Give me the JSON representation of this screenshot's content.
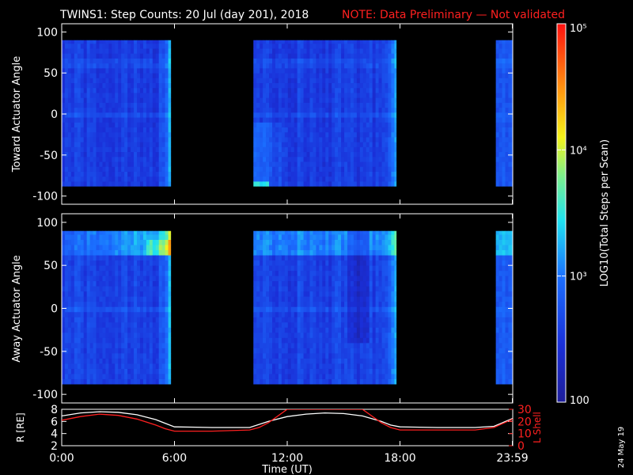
{
  "header": {
    "title": "TWINS1: Step Counts: 20 Jul (day 201), 2018",
    "note": "NOTE: Data Preliminary — Not validated"
  },
  "stamp": "24 May 19",
  "colors": {
    "background": "#000000",
    "note": "#ff2020",
    "frame": "#ffffff",
    "lshell": "#ff2020",
    "radius": "#ffffff"
  },
  "colorbar": {
    "label": "LOG10(Total Steps per Scan)",
    "scale": "log",
    "range": [
      100,
      100000
    ],
    "ticks": [
      {
        "text": "100",
        "value": 100
      },
      {
        "text": "10³",
        "value": 1000
      },
      {
        "text": "10⁴",
        "value": 10000
      },
      {
        "text": "10⁵",
        "value": 100000
      }
    ]
  },
  "chart_data": [
    {
      "type": "heatmap",
      "id": "toward",
      "ylabel": "Toward Actuator Angle",
      "ylim": [
        -110,
        110
      ],
      "yticks": [
        -100,
        -50,
        0,
        50,
        100
      ],
      "xlim": [
        0,
        24
      ],
      "data_intervals": [
        [
          0.0,
          5.8
        ],
        [
          10.2,
          17.8
        ],
        [
          23.1,
          24.0
        ]
      ],
      "angle_range": [
        -88,
        90
      ],
      "background_log": 2.55
    },
    {
      "type": "heatmap",
      "id": "away",
      "ylabel": "Away Actuator Angle",
      "ylim": [
        -110,
        110
      ],
      "yticks": [
        -100,
        -50,
        0,
        50,
        100
      ],
      "xlim": [
        0,
        24
      ],
      "data_intervals": [
        [
          0.0,
          5.8
        ],
        [
          10.2,
          17.8
        ],
        [
          23.1,
          24.0
        ]
      ],
      "angle_range": [
        -88,
        90
      ],
      "background_log": 2.6
    },
    {
      "type": "line",
      "id": "orbit",
      "ylabel_left": "R [RE]",
      "ylabel_right": "L Shell",
      "ylim_left": [
        2,
        8
      ],
      "yticks_left": [
        2,
        4,
        6,
        8
      ],
      "ylim_right": [
        0,
        30
      ],
      "yticks_right": [
        0,
        10,
        20,
        30
      ],
      "xlim": [
        0,
        24
      ],
      "xticks": [
        {
          "value": 0,
          "label": "0:00"
        },
        {
          "value": 6,
          "label": "6:00"
        },
        {
          "value": 12,
          "label": "12:00"
        },
        {
          "value": 18,
          "label": "18:00"
        },
        {
          "value": 23.98,
          "label": "23:59"
        }
      ],
      "xlabel": "Time (UT)",
      "series": [
        {
          "axis": "left",
          "x": [
            0,
            1,
            2,
            3,
            4,
            5,
            5.5,
            6,
            8,
            10,
            11,
            12,
            13,
            14,
            15,
            16,
            17,
            17.5,
            18,
            20,
            22,
            23,
            24
          ],
          "y": [
            6.9,
            7.4,
            7.6,
            7.5,
            7.1,
            6.3,
            5.7,
            5.1,
            5.0,
            5.0,
            6.0,
            6.8,
            7.2,
            7.4,
            7.3,
            6.9,
            6.0,
            5.4,
            5.1,
            5.0,
            5.0,
            5.2,
            6.5
          ]
        },
        {
          "axis": "right",
          "x": [
            0,
            1,
            2,
            3,
            4,
            5,
            5.5,
            6,
            8,
            10,
            10.5,
            11,
            12,
            16,
            17,
            17.5,
            18,
            20,
            22,
            23,
            24
          ],
          "y": [
            21,
            24,
            26,
            25,
            22,
            17,
            14,
            12,
            12,
            13,
            15,
            19,
            30,
            30,
            19,
            15,
            13,
            13,
            13,
            15,
            22
          ]
        }
      ]
    }
  ]
}
